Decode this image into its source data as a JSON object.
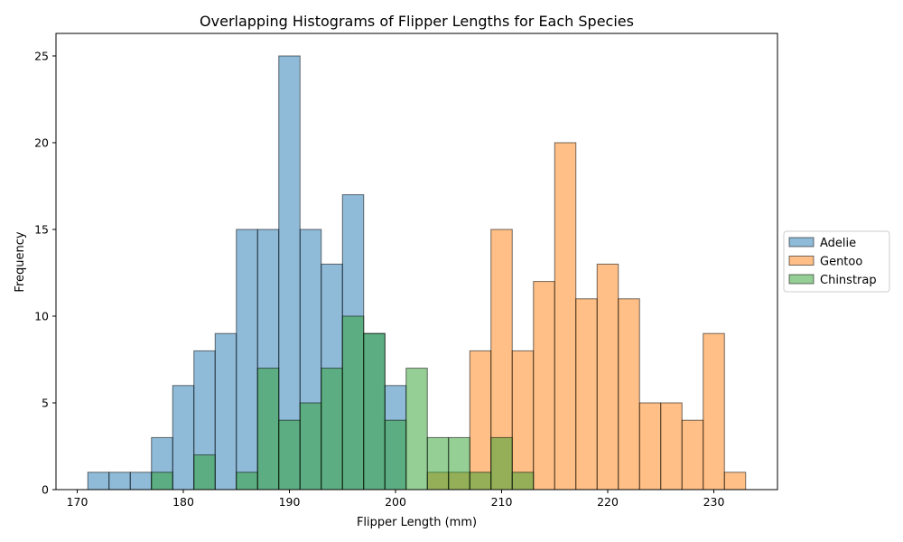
{
  "chart_data": {
    "type": "histogram",
    "title": "Overlapping Histograms of Flipper Lengths for Each Species",
    "xlabel": "Flipper Length (mm)",
    "ylabel": "Frequency",
    "xlim": [
      168,
      236
    ],
    "ylim": [
      0,
      26.3
    ],
    "xticks": [
      170,
      180,
      190,
      200,
      210,
      220,
      230
    ],
    "yticks": [
      0,
      5,
      10,
      15,
      20,
      25
    ],
    "grid": false,
    "legend": {
      "placement": "right-outside"
    },
    "bin_width": 2,
    "series": [
      {
        "name": "Adelie",
        "color": "#1f77b4",
        "opacity": 0.5,
        "bin_start": 171,
        "counts": [
          1,
          1,
          1,
          3,
          6,
          8,
          9,
          15,
          15,
          25,
          15,
          13,
          17,
          9,
          6
        ]
      },
      {
        "name": "Gentoo",
        "color": "#ff7f0e",
        "opacity": 0.5,
        "bin_start": 203,
        "counts": [
          1,
          1,
          8,
          15,
          8,
          12,
          20,
          11,
          13,
          11,
          5,
          5,
          4,
          9,
          1
        ]
      },
      {
        "name": "Chinstrap",
        "color": "#2ca02c",
        "opacity": 0.5,
        "bin_start": 177,
        "counts": [
          1,
          0,
          2,
          0,
          1,
          7,
          4,
          5,
          7,
          10,
          9,
          4,
          7,
          3,
          3,
          1,
          3,
          1
        ]
      }
    ]
  }
}
